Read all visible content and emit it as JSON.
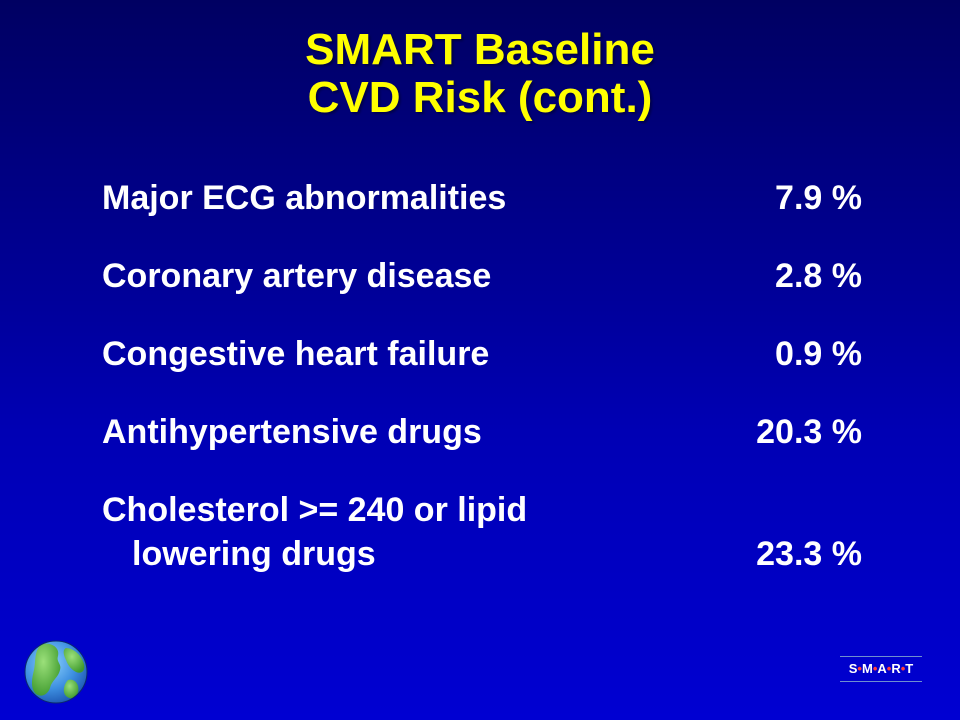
{
  "title": {
    "line1": "SMART Baseline",
    "line2": "CVD Risk (cont.)"
  },
  "rows": [
    {
      "label": "Major ECG abnormalities",
      "value": "7.9 %"
    },
    {
      "label": "Coronary artery disease",
      "value": "2.8 %"
    },
    {
      "label": "Congestive heart failure",
      "value": "0.9 %"
    },
    {
      "label": "Antihypertensive drugs",
      "value": "20.3 %"
    },
    {
      "label": "Cholesterol >= 240 or lipid",
      "label_cont": "lowering drugs",
      "value": "23.3 %"
    }
  ],
  "logo": {
    "letters": [
      "S",
      "M",
      "A",
      "R",
      "T"
    ]
  },
  "colors": {
    "title": "#ffff00",
    "text": "#ffffff",
    "background_top": "#000062",
    "background_bottom": "#0000d2",
    "logo_dot": "#ff3b3b"
  },
  "icons": {
    "globe": "globe-icon"
  }
}
